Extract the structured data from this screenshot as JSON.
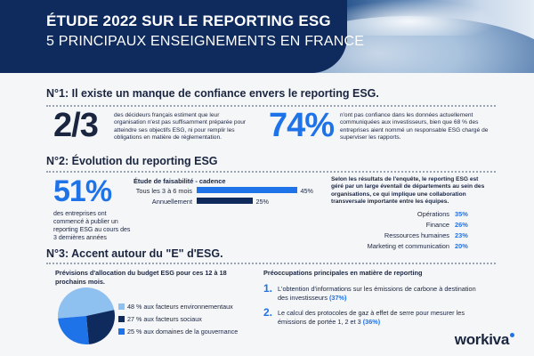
{
  "header": {
    "title": "ÉTUDE 2022 SUR LE REPORTING ESG",
    "subtitle": "5 PRINCIPAUX ENSEIGNEMENTS EN FRANCE"
  },
  "section1": {
    "heading": "N°1: Il existe un manque de confiance envers le reporting ESG.",
    "stat1": {
      "value": "2/3",
      "text": "des décideurs français estiment que leur organisation n'est pas suffisamment préparée pour atteindre ses objectifs ESG, ni pour remplir les obligations en matière de réglementation."
    },
    "stat2": {
      "value": "74%",
      "text": "n'ont pas confiance dans les données actuellement communiquées aux investisseurs, bien que 68 % des entreprises aient nommé un responsable ESG chargé de superviser les rapports."
    }
  },
  "section2": {
    "heading": "N°2: Évolution du reporting ESG",
    "stat": {
      "value": "51%",
      "text": "des entreprises ont commencé à publier un reporting ESG au cours des 3 dernières années"
    },
    "feasibility": {
      "title": "Étude de faisabilité - cadence",
      "rows": [
        {
          "label": "Tous les 3 à 6 mois",
          "value": "45%",
          "pct": 45,
          "color": "#1e73e8"
        },
        {
          "label": "Annuellement",
          "value": "25%",
          "pct": 25,
          "color": "#0f2b5e"
        }
      ]
    },
    "survey": {
      "text": "Selon les résultats de l'enquête, le reporting ESG est géré par un large éventail de départements au sein des organisations, ce qui implique une collaboration transversale importante entre les équipes.",
      "rows": [
        {
          "label": "Opérations",
          "value": "35%"
        },
        {
          "label": "Finance",
          "value": "26%"
        },
        {
          "label": "Ressources humaines",
          "value": "23%"
        },
        {
          "label": "Marketing et communication",
          "value": "20%"
        }
      ]
    }
  },
  "section3": {
    "heading": "N°3: Accent autour du \"E\" d'ESG.",
    "budget": {
      "title": "Prévisions d'allocation du budget ESG pour ces 12 à 18 prochains mois.",
      "legend": [
        {
          "text": "48 % aux facteurs environnementaux",
          "color": "#8ec0f0"
        },
        {
          "text": "27 % aux facteurs sociaux",
          "color": "#0f2b5e"
        },
        {
          "text": "25 % aux domaines de la gouvernance",
          "color": "#1e73e8"
        }
      ]
    },
    "concerns": {
      "title": "Préoccupations principales en matière de reporting",
      "items": [
        {
          "num": "1.",
          "text": "L'obtention d'informations sur les émissions de carbone à destination des investisseurs",
          "pct": "(37%)"
        },
        {
          "num": "2.",
          "text": "Le calcul des protocoles de gaz à effet de serre pour mesurer les émissions de portée 1, 2 et 3",
          "pct": "(36%)"
        }
      ]
    }
  },
  "chart_data": {
    "type": "pie",
    "categories": [
      "facteurs environnementaux",
      "facteurs sociaux",
      "domaines de la gouvernance"
    ],
    "values": [
      48,
      27,
      25
    ],
    "colors": [
      "#8ec0f0",
      "#0f2b5e",
      "#1e73e8"
    ]
  },
  "logo": {
    "text": "workiva"
  }
}
